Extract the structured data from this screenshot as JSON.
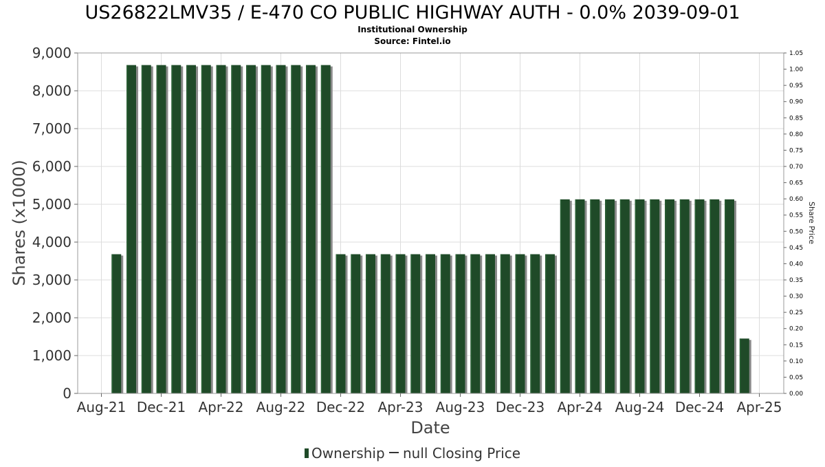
{
  "chart_data": {
    "type": "bar",
    "title": "US26822LMV35 / E-470 CO PUBLIC HIGHWAY AUTH - 0.0% 2039-09-01",
    "subtitle_lines": [
      "Institutional Ownership",
      "Source: Fintel.io"
    ],
    "xlabel": "Date",
    "ylabel": "Shares (x1000)",
    "y2label": "Share Price",
    "ylim": [
      0,
      9000
    ],
    "y2lim": [
      0,
      1.05
    ],
    "yticks": [
      "0",
      "1,000",
      "2,000",
      "3,000",
      "4,000",
      "5,000",
      "6,000",
      "7,000",
      "8,000",
      "9,000"
    ],
    "y2ticks": [
      "0.00",
      "0.05",
      "0.10",
      "0.15",
      "0.20",
      "0.25",
      "0.30",
      "0.35",
      "0.40",
      "0.45",
      "0.50",
      "0.55",
      "0.60",
      "0.65",
      "0.70",
      "0.75",
      "0.80",
      "0.85",
      "0.90",
      "0.95",
      "1.00",
      "1.05"
    ],
    "xticks": [
      "Aug-21",
      "Dec-21",
      "Apr-22",
      "Aug-22",
      "Dec-22",
      "Apr-23",
      "Aug-23",
      "Dec-23",
      "Apr-24",
      "Aug-24",
      "Dec-24",
      "Apr-25"
    ],
    "grid": true,
    "legend_position": "bottom",
    "series": [
      {
        "name": "Ownership",
        "color": "#1f4a28",
        "x": [
          "2021-09",
          "2021-10",
          "2021-11",
          "2021-12",
          "2022-01",
          "2022-02",
          "2022-03",
          "2022-04",
          "2022-05",
          "2022-06",
          "2022-07",
          "2022-08",
          "2022-09",
          "2022-10",
          "2022-11",
          "2022-12",
          "2023-01",
          "2023-02",
          "2023-03",
          "2023-04",
          "2023-05",
          "2023-06",
          "2023-07",
          "2023-08",
          "2023-09",
          "2023-10",
          "2023-11",
          "2023-12",
          "2024-01",
          "2024-02",
          "2024-03",
          "2024-04",
          "2024-05",
          "2024-06",
          "2024-07",
          "2024-08",
          "2024-09",
          "2024-10",
          "2024-11",
          "2024-12",
          "2025-01",
          "2025-02",
          "2025-03"
        ],
        "values": [
          3680,
          8680,
          8680,
          8680,
          8680,
          8680,
          8680,
          8680,
          8680,
          8680,
          8680,
          8680,
          8680,
          8680,
          8680,
          3680,
          3680,
          3680,
          3680,
          3680,
          3680,
          3680,
          3680,
          3680,
          3680,
          3680,
          3680,
          3680,
          3680,
          3680,
          5130,
          5130,
          5130,
          5130,
          5130,
          5130,
          5130,
          5130,
          5130,
          5130,
          5130,
          5130,
          1450
        ]
      },
      {
        "name": "null Closing Price",
        "color": "#333333",
        "values": []
      }
    ]
  }
}
